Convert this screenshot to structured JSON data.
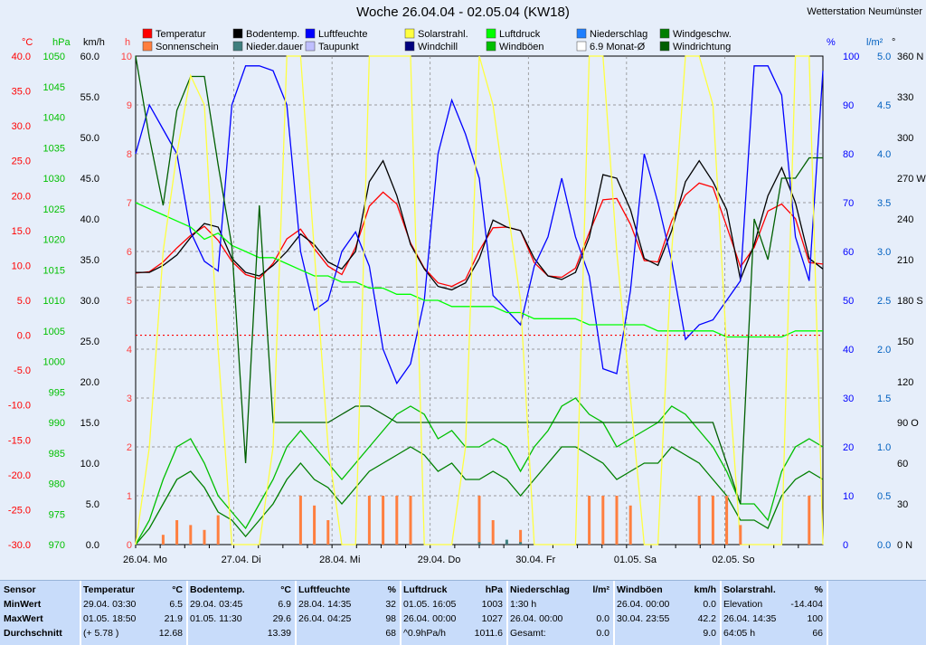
{
  "title": "Woche 26.04.04 - 02.05.04 (KW18)",
  "station": "Wetterstation Neumünster",
  "legend": [
    {
      "label": "Temperatur",
      "color": "#ff0000"
    },
    {
      "label": "Sonnenschein",
      "color": "#ff7f3f"
    },
    {
      "label": "Bodentemp.",
      "color": "#000000"
    },
    {
      "label": "Nieder.dauer",
      "color": "#3f7f7f"
    },
    {
      "label": "Luftfeuchte",
      "color": "#0000ff"
    },
    {
      "label": "Taupunkt",
      "color": "#bfbfff"
    },
    {
      "label": "Solarstrahl.",
      "color": "#ffff3f"
    },
    {
      "label": "Windchill",
      "color": "#00007f"
    },
    {
      "label": "Luftdruck",
      "color": "#00ff00"
    },
    {
      "label": "Windböen",
      "color": "#00bf00"
    },
    {
      "label": "Niederschlag",
      "color": "#1f7fff"
    },
    {
      "label": "6.9 Monat-Ø",
      "color": "#ffffff"
    },
    {
      "label": "Windgeschw.",
      "color": "#007f00"
    },
    {
      "label": "Windrichtung",
      "color": "#005f00"
    }
  ],
  "axis_units": {
    "temp": "°C",
    "hpa": "hPa",
    "kmh": "km/h",
    "h": "h",
    "pct": "%",
    "lm2": "l/m²",
    "deg": "°"
  },
  "chart_data": {
    "type": "line",
    "x_labels": [
      "26.04.  Mo",
      "27.04.  Di",
      "28.04.  Mi",
      "29.04.  Do",
      "30.04.  Fr",
      "01.05.  Sa",
      "02.05.  So"
    ],
    "axes": {
      "temp": {
        "unit": "°C",
        "min": -30,
        "max": 40,
        "ticks": [
          "40.0",
          "35.0",
          "30.0",
          "25.0",
          "20.0",
          "15.0",
          "10.0",
          "5.0",
          "0.0",
          "-5.0",
          "-10.0",
          "-15.0",
          "-20.0",
          "-25.0",
          "-30.0"
        ]
      },
      "hpa": {
        "unit": "hPa",
        "min": 970,
        "max": 1050,
        "ticks": [
          "1050",
          "1045",
          "1040",
          "1035",
          "1030",
          "1025",
          "1020",
          "1015",
          "1010",
          "1005",
          "1000",
          "995",
          "990",
          "985",
          "980",
          "975",
          "970"
        ]
      },
      "kmh": {
        "unit": "km/h",
        "min": 0,
        "max": 60,
        "ticks": [
          "60.0",
          "55.0",
          "50.0",
          "45.0",
          "40.0",
          "35.0",
          "30.0",
          "25.0",
          "20.0",
          "15.0",
          "10.0",
          "5.0",
          "0.0"
        ]
      },
      "hours": {
        "unit": "h",
        "min": 0,
        "max": 10,
        "ticks": [
          "10",
          "9",
          "8",
          "7",
          "6",
          "5",
          "4",
          "3",
          "2",
          "1",
          "0"
        ]
      },
      "pct": {
        "unit": "%",
        "min": 0,
        "max": 100,
        "ticks": [
          "100",
          "90",
          "80",
          "70",
          "60",
          "50",
          "40",
          "30",
          "20",
          "10",
          "0"
        ]
      },
      "lm2": {
        "unit": "l/m²",
        "min": 0,
        "max": 5,
        "ticks": [
          "5.0",
          "4.5",
          "4.0",
          "3.5",
          "3.0",
          "2.5",
          "2.0",
          "1.5",
          "1.0",
          "0.5",
          "0.0"
        ]
      },
      "deg": {
        "unit": "°",
        "min": 0,
        "max": 360,
        "ticks": [
          "360 N",
          "330",
          "300",
          "270 W",
          "240",
          "210",
          "180 S",
          "150",
          "120",
          "90 O",
          "60",
          "30",
          "0 N"
        ]
      }
    },
    "series": [
      {
        "name": "Temperatur",
        "axis": "temp",
        "color": "#ff0000",
        "values": [
          8.9,
          9.1,
          10.5,
          12.5,
          14.3,
          15.6,
          13.6,
          10.6,
          8.7,
          8.1,
          10.3,
          13.8,
          15.2,
          12.4,
          9.9,
          8.7,
          12.6,
          18.5,
          20.5,
          18.8,
          13.2,
          9.6,
          7.5,
          7.0,
          8.0,
          12.1,
          15.4,
          15.5,
          15.0,
          10.4,
          8.5,
          8.3,
          9.6,
          14.7,
          19.4,
          19.6,
          15.9,
          10.7,
          10.5,
          16.4,
          20.1,
          21.8,
          21.2,
          15.6,
          9.8,
          12.6,
          17.8,
          18.8,
          16.7,
          10.4,
          10.2
        ]
      },
      {
        "name": "Bodentemp.",
        "axis": "temp",
        "color": "#000000",
        "values": [
          9.0,
          9.0,
          10.0,
          11.5,
          14.0,
          16.0,
          15.5,
          11.0,
          9.0,
          8.5,
          10.0,
          12.0,
          14.5,
          13.0,
          10.5,
          9.5,
          12.0,
          22.0,
          25.0,
          20.0,
          13.0,
          9.5,
          7.0,
          6.5,
          7.5,
          11.0,
          16.5,
          15.5,
          15.0,
          11.0,
          8.5,
          8.0,
          9.0,
          14.0,
          23.0,
          22.5,
          18.0,
          11.0,
          10.0,
          15.0,
          22.0,
          25.0,
          22.0,
          18.0,
          8.0,
          13.0,
          20.0,
          24.0,
          19.0,
          11.0,
          9.5
        ]
      },
      {
        "name": "Luftfeuchte",
        "axis": "pct",
        "color": "#0000ff",
        "values": [
          80,
          90,
          85,
          80,
          64,
          58,
          56,
          90,
          98,
          98,
          97,
          90,
          60,
          48,
          50,
          60,
          64,
          57,
          40,
          33,
          37,
          50,
          80,
          91,
          84,
          75,
          51,
          48,
          45,
          57,
          63,
          75,
          63,
          55,
          36,
          35,
          52,
          80,
          70,
          58,
          42,
          45,
          46,
          50,
          54,
          98,
          98,
          92,
          63,
          54,
          97
        ]
      },
      {
        "name": "Luftdruck",
        "axis": "hpa",
        "color": "#00ff00",
        "values": [
          1026,
          1025,
          1024,
          1023,
          1022,
          1020,
          1021,
          1019,
          1018,
          1017,
          1017,
          1016,
          1015,
          1014,
          1014,
          1013,
          1013,
          1012,
          1012,
          1011,
          1011,
          1010,
          1010,
          1009,
          1009,
          1009,
          1009,
          1008,
          1008,
          1007,
          1007,
          1007,
          1007,
          1006,
          1006,
          1006,
          1006,
          1006,
          1005,
          1005,
          1005,
          1005,
          1005,
          1004,
          1004,
          1004,
          1004,
          1004,
          1005,
          1005,
          1005
        ]
      },
      {
        "name": "Windgeschw.",
        "axis": "kmh",
        "color": "#007f00",
        "values": [
          0,
          2,
          5,
          8,
          9,
          7,
          4,
          3,
          1,
          3,
          5,
          8,
          10,
          8,
          7,
          5,
          7,
          9,
          10,
          11,
          12,
          11,
          9,
          10,
          8,
          8,
          9,
          8,
          6,
          8,
          10,
          12,
          12,
          11,
          10,
          8,
          9,
          10,
          10,
          12,
          11,
          10,
          8,
          6,
          3,
          3,
          2,
          6,
          8,
          9,
          8
        ]
      },
      {
        "name": "Windböen",
        "axis": "kmh",
        "color": "#00bf00",
        "values": [
          0,
          3,
          8,
          12,
          13,
          10,
          6,
          4,
          2,
          5,
          8,
          12,
          14,
          12,
          10,
          8,
          10,
          12,
          14,
          16,
          17,
          16,
          13,
          14,
          12,
          12,
          13,
          12,
          9,
          12,
          14,
          17,
          18,
          16,
          15,
          12,
          13,
          14,
          15,
          17,
          16,
          14,
          12,
          9,
          5,
          5,
          3,
          9,
          12,
          13,
          12
        ]
      },
      {
        "name": "Windrichtung",
        "axis": "deg",
        "color": "#005f00",
        "values": [
          360,
          300,
          250,
          320,
          345,
          345,
          280,
          220,
          60,
          250,
          90,
          90,
          90,
          90,
          90,
          96,
          102,
          102,
          96,
          90,
          90,
          90,
          90,
          90,
          90,
          90,
          90,
          90,
          90,
          90,
          90,
          90,
          90,
          90,
          90,
          90,
          90,
          90,
          90,
          90,
          90,
          90,
          90,
          60,
          30,
          240,
          210,
          270,
          270,
          285,
          285
        ]
      },
      {
        "name": "Solarstrahl.",
        "axis": "pct",
        "color": "#ffff3f",
        "values": [
          0,
          20,
          60,
          80,
          96,
          90,
          40,
          0,
          0,
          0,
          20,
          100,
          100,
          60,
          20,
          0,
          0,
          100,
          100,
          100,
          100,
          0,
          0,
          0,
          20,
          100,
          90,
          70,
          50,
          0,
          0,
          0,
          0,
          100,
          100,
          60,
          30,
          0,
          0,
          60,
          100,
          100,
          90,
          40,
          0,
          0,
          0,
          0,
          100,
          100,
          0
        ]
      },
      {
        "name": "Sonnenschein",
        "axis": "hours",
        "color": "#ff7f3f",
        "values": [
          0,
          0,
          0.2,
          0.5,
          0.4,
          0.3,
          0.6,
          0,
          0,
          0,
          0,
          0,
          1.0,
          0.8,
          0.5,
          0,
          0,
          1.0,
          1.0,
          1.0,
          1.0,
          0,
          0,
          0,
          0,
          1.0,
          0.5,
          0,
          0.3,
          0,
          0,
          0,
          0,
          1.0,
          1.0,
          1.0,
          0.8,
          0,
          0,
          0,
          0,
          1.0,
          1.0,
          1.0,
          0.4,
          0,
          0,
          0,
          0,
          1.0,
          0
        ]
      },
      {
        "name": "Nieder.dauer",
        "axis": "hours",
        "color": "#3f7f7f",
        "values": [
          0,
          0,
          0,
          0,
          0,
          0,
          0,
          0,
          0,
          0,
          0,
          0,
          0,
          0,
          0,
          0,
          0,
          0,
          0,
          0,
          0,
          0,
          0,
          0,
          0,
          0.05,
          0,
          0.1,
          0.05,
          0,
          0,
          0,
          0,
          0,
          0,
          0,
          0,
          0,
          0,
          0,
          0,
          0,
          0,
          0,
          0,
          0,
          0,
          0,
          0,
          0,
          0
        ]
      }
    ],
    "reference_lines": [
      {
        "label": "0 °C",
        "axis": "temp",
        "value": 0.0,
        "color": "#ff0000",
        "style": "dotted"
      },
      {
        "label": "6.9 Monat-Ø",
        "axis": "temp",
        "value": 6.9,
        "color": "#a0a0a0",
        "style": "dashed"
      }
    ]
  },
  "stats": {
    "row_labels": [
      "Sensor",
      "MinWert",
      "MaxWert",
      "Durchschnitt"
    ],
    "groups": [
      {
        "name": "Temperatur",
        "unit": "°C",
        "rows": [
          [
            "29.04.  03:30",
            "6.5"
          ],
          [
            "01.05.  18:50",
            "21.9"
          ],
          [
            "(+ 5.78 )",
            "12.68"
          ]
        ]
      },
      {
        "name": "Bodentemp.",
        "unit": "°C",
        "rows": [
          [
            "29.04.  03:45",
            "6.9"
          ],
          [
            "01.05.  11:30",
            "29.6"
          ],
          [
            "",
            "13.39"
          ]
        ]
      },
      {
        "name": "Luftfeuchte",
        "unit": "%",
        "rows": [
          [
            "28.04.  14:35",
            "32"
          ],
          [
            "26.04.  04:25",
            "98"
          ],
          [
            "",
            "68"
          ]
        ]
      },
      {
        "name": "Luftdruck",
        "unit": "hPa",
        "rows": [
          [
            "01.05.  16:05",
            "1003"
          ],
          [
            "26.04.  00:00",
            "1027"
          ],
          [
            "^0.9hPa/h",
            "1011.6"
          ]
        ]
      },
      {
        "name": "Niederschlag",
        "unit": "l/m²",
        "rows": [
          [
            "1:30 h",
            ""
          ],
          [
            "26.04.  00:00",
            "0.0"
          ],
          [
            "Gesamt:",
            "0.0"
          ]
        ]
      },
      {
        "name": "Windböen",
        "unit": "km/h",
        "rows": [
          [
            "26.04.  00:00",
            "0.0"
          ],
          [
            "30.04.  23:55",
            "42.2"
          ],
          [
            "",
            "9.0"
          ]
        ]
      },
      {
        "name": "Solarstrahl.",
        "unit": "%",
        "rows": [
          [
            "Elevation",
            "-14.404"
          ],
          [
            "26.04.  14:35",
            "100"
          ],
          [
            "64:05 h",
            "66"
          ]
        ]
      }
    ]
  }
}
